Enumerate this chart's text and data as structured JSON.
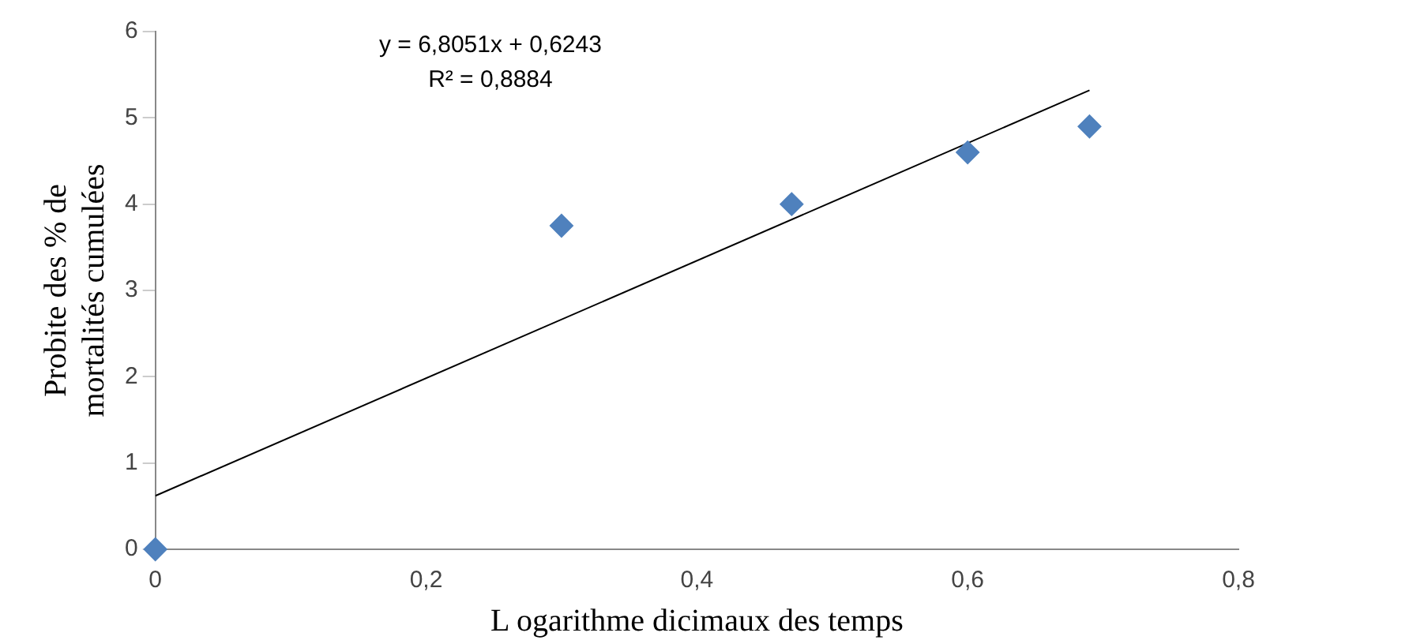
{
  "chart_data": {
    "type": "scatter",
    "xlabel": "L ogarithme dicimaux des temps",
    "ylabel": "Probite des % de mortalités cumulées",
    "annotations": [
      "y = 6,8051x + 0,6243",
      "R² = 0,8884"
    ],
    "xlim": [
      0,
      0.8
    ],
    "xticks": [
      0,
      {
        "value": 0.2,
        "label": "0,2"
      },
      {
        "value": 0.4,
        "label": "0,4"
      },
      {
        "value": 0.6,
        "label": "0,6"
      },
      {
        "value": 0.8,
        "label": "0,8"
      }
    ],
    "ylim": [
      0,
      6
    ],
    "yticks": [
      0,
      1,
      2,
      3,
      4,
      5,
      6
    ],
    "grid": false,
    "legend": false,
    "series": [
      {
        "color": "#4f81bd",
        "marker": "diamond",
        "x": [
          0,
          0.3,
          0.47,
          0.6,
          0.69
        ],
        "values": [
          0,
          3.75,
          4.0,
          4.6,
          4.9
        ]
      },
      {
        "type": "line",
        "color": "#000000",
        "marker": "none",
        "x": [
          0,
          0.69
        ],
        "values": [
          0.62,
          5.32
        ]
      }
    ]
  }
}
